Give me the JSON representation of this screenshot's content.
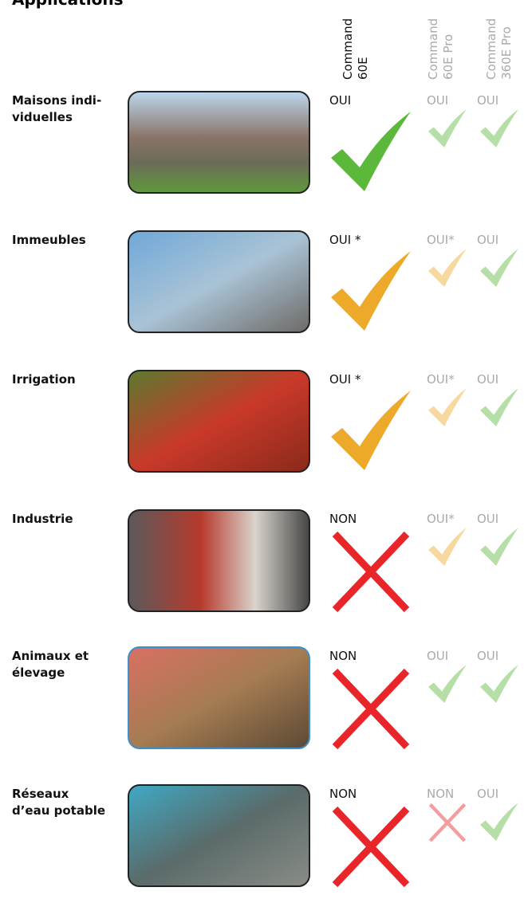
{
  "header": {
    "title": "Applications"
  },
  "columns": [
    {
      "lines": [
        "Command",
        "60E"
      ]
    },
    {
      "lines": [
        "Command",
        "60E Pro"
      ]
    },
    {
      "lines": [
        "Command",
        "360E Pro"
      ]
    }
  ],
  "rows": [
    {
      "label": [
        "Maisons indi-",
        "viduelles"
      ],
      "cells": [
        "OUI",
        "OUI",
        "OUI"
      ]
    },
    {
      "label": [
        "Immeubles"
      ],
      "cells": [
        "OUI *",
        "OUI*",
        "OUI"
      ]
    },
    {
      "label": [
        "Irrigation"
      ],
      "cells": [
        "OUI *",
        "OUI*",
        "OUI"
      ]
    },
    {
      "label": [
        "Industrie"
      ],
      "cells": [
        "NON",
        "OUI*",
        "OUI"
      ]
    },
    {
      "label": [
        "Animaux et",
        "élevage"
      ],
      "cells": [
        "NON",
        "OUI",
        "OUI"
      ]
    },
    {
      "label": [
        "Réseaux",
        "d’eau potable"
      ],
      "cells": [
        "NON",
        "NON",
        "OUI"
      ]
    }
  ]
}
